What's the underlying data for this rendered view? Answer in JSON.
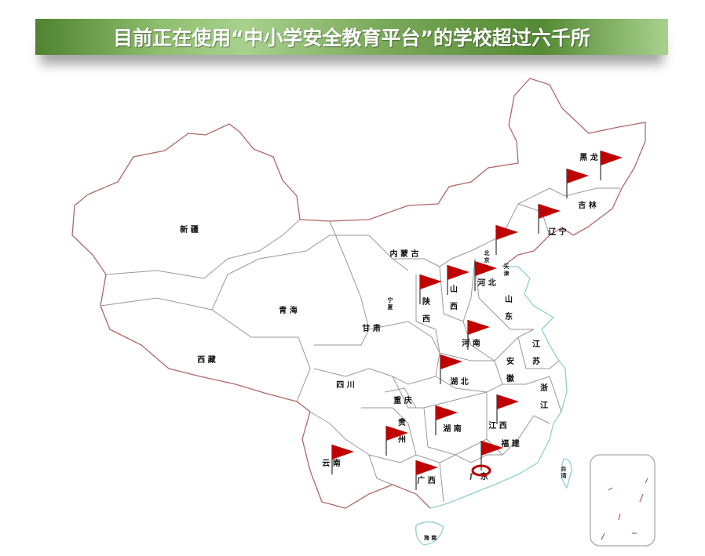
{
  "title": "目前正在使用“中小学安全教育平台”的学校超过六千所",
  "colors": {
    "title_bar": "#6a9c48",
    "border": "#b06868",
    "province_line": "#999999",
    "coast": "#8fd0d0",
    "flag": "#c00000"
  },
  "provinces": [
    {
      "id": "heilongjiang",
      "text": "黑 龙"
    },
    {
      "id": "jilin",
      "text": "吉 林"
    },
    {
      "id": "liaoning",
      "text": "辽 宁"
    },
    {
      "id": "neimenggu",
      "text": "内 蒙 古"
    },
    {
      "id": "xinjiang",
      "text": "新 疆"
    },
    {
      "id": "qinghai",
      "text": "青 海"
    },
    {
      "id": "xizang",
      "text": "西 藏"
    },
    {
      "id": "gansu",
      "text": "甘 肃"
    },
    {
      "id": "ningxia",
      "text": "宁夏"
    },
    {
      "id": "shaanxi",
      "text": "陕西"
    },
    {
      "id": "shanxi",
      "text": "山西"
    },
    {
      "id": "hebei",
      "text": "河 北"
    },
    {
      "id": "beijing",
      "text": "北京"
    },
    {
      "id": "tianjin",
      "text": "天津"
    },
    {
      "id": "shandong",
      "text": "山东"
    },
    {
      "id": "henan",
      "text": "河 南"
    },
    {
      "id": "jiangsu",
      "text": "江苏"
    },
    {
      "id": "anhui",
      "text": "安徽"
    },
    {
      "id": "hubei",
      "text": "湖 北"
    },
    {
      "id": "sichuan",
      "text": "四 川"
    },
    {
      "id": "chongqing",
      "text": "重 庆"
    },
    {
      "id": "zhejiang",
      "text": "浙江"
    },
    {
      "id": "guizhou",
      "text": "贵州"
    },
    {
      "id": "hunan",
      "text": "湖 南"
    },
    {
      "id": "jiangxi",
      "text": "江 西"
    },
    {
      "id": "fujian",
      "text": "福 建"
    },
    {
      "id": "yunnan",
      "text": "云 南"
    },
    {
      "id": "guangxi",
      "text": "广 西"
    },
    {
      "id": "guangdong",
      "text": "广 东"
    },
    {
      "id": "taiwan",
      "text": "台湾"
    },
    {
      "id": "hainan",
      "text": "海 南"
    }
  ],
  "flags": [
    "heilongjiang",
    "jilin",
    "liaoning",
    "beijing",
    "shaanxi",
    "shanxi",
    "hebei",
    "henan",
    "hubei",
    "hunan",
    "jiangxi",
    "guizhou",
    "yunnan",
    "guangxi",
    "guangdong"
  ],
  "highlighted": "guangdong"
}
